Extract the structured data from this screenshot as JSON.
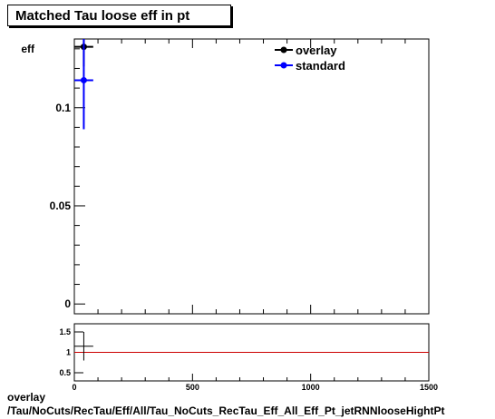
{
  "header": {
    "title": "Matched Tau loose eff in pt"
  },
  "footer": {
    "line1": "overlay",
    "line2": "/Tau/NoCuts/RecTau/Eff/All/Tau_NoCuts_RecTau_Eff_All_Eff_Pt_jetRNNlooseHightPt"
  },
  "chart_data": [
    {
      "type": "scatter",
      "title": "Matched Tau loose eff in pt",
      "ylabel": "eff",
      "xlim": [
        0,
        1500
      ],
      "ylim": [
        -0.005,
        0.135
      ],
      "y_ticks": [
        0,
        0.05,
        0.1
      ],
      "y_tick_labels": [
        "0",
        "0.05",
        "0.1"
      ],
      "legend": {
        "placement": "top-right",
        "entries": [
          "overlay",
          "standard"
        ]
      },
      "series": [
        {
          "name": "overlay",
          "color": "#000000",
          "points": [
            {
              "x": 40,
              "y": 0.131,
              "xerr": 40,
              "ylo": 0.121,
              "yhi": 0.141
            }
          ]
        },
        {
          "name": "standard",
          "color": "#0000ff",
          "points": [
            {
              "x": 40,
              "y": 0.114,
              "xerr": 40,
              "ylo": 0.089,
              "yhi": 0.138
            }
          ]
        }
      ]
    },
    {
      "type": "scatter",
      "xlim": [
        0,
        1500
      ],
      "ylim": [
        0.3,
        1.7
      ],
      "x_ticks": [
        0,
        500,
        1000,
        1500
      ],
      "x_tick_labels": [
        "0",
        "500",
        "1000",
        "1500"
      ],
      "y_ticks": [
        0.5,
        1,
        1.5
      ],
      "y_tick_labels": [
        "0.5",
        "1",
        "1.5"
      ],
      "reference_line": {
        "y": 1,
        "color": "#cc0000"
      },
      "points": [
        {
          "x": 40,
          "y": 1.15,
          "xerr": 40,
          "ylo": 0.8,
          "yhi": 1.5
        }
      ]
    }
  ]
}
